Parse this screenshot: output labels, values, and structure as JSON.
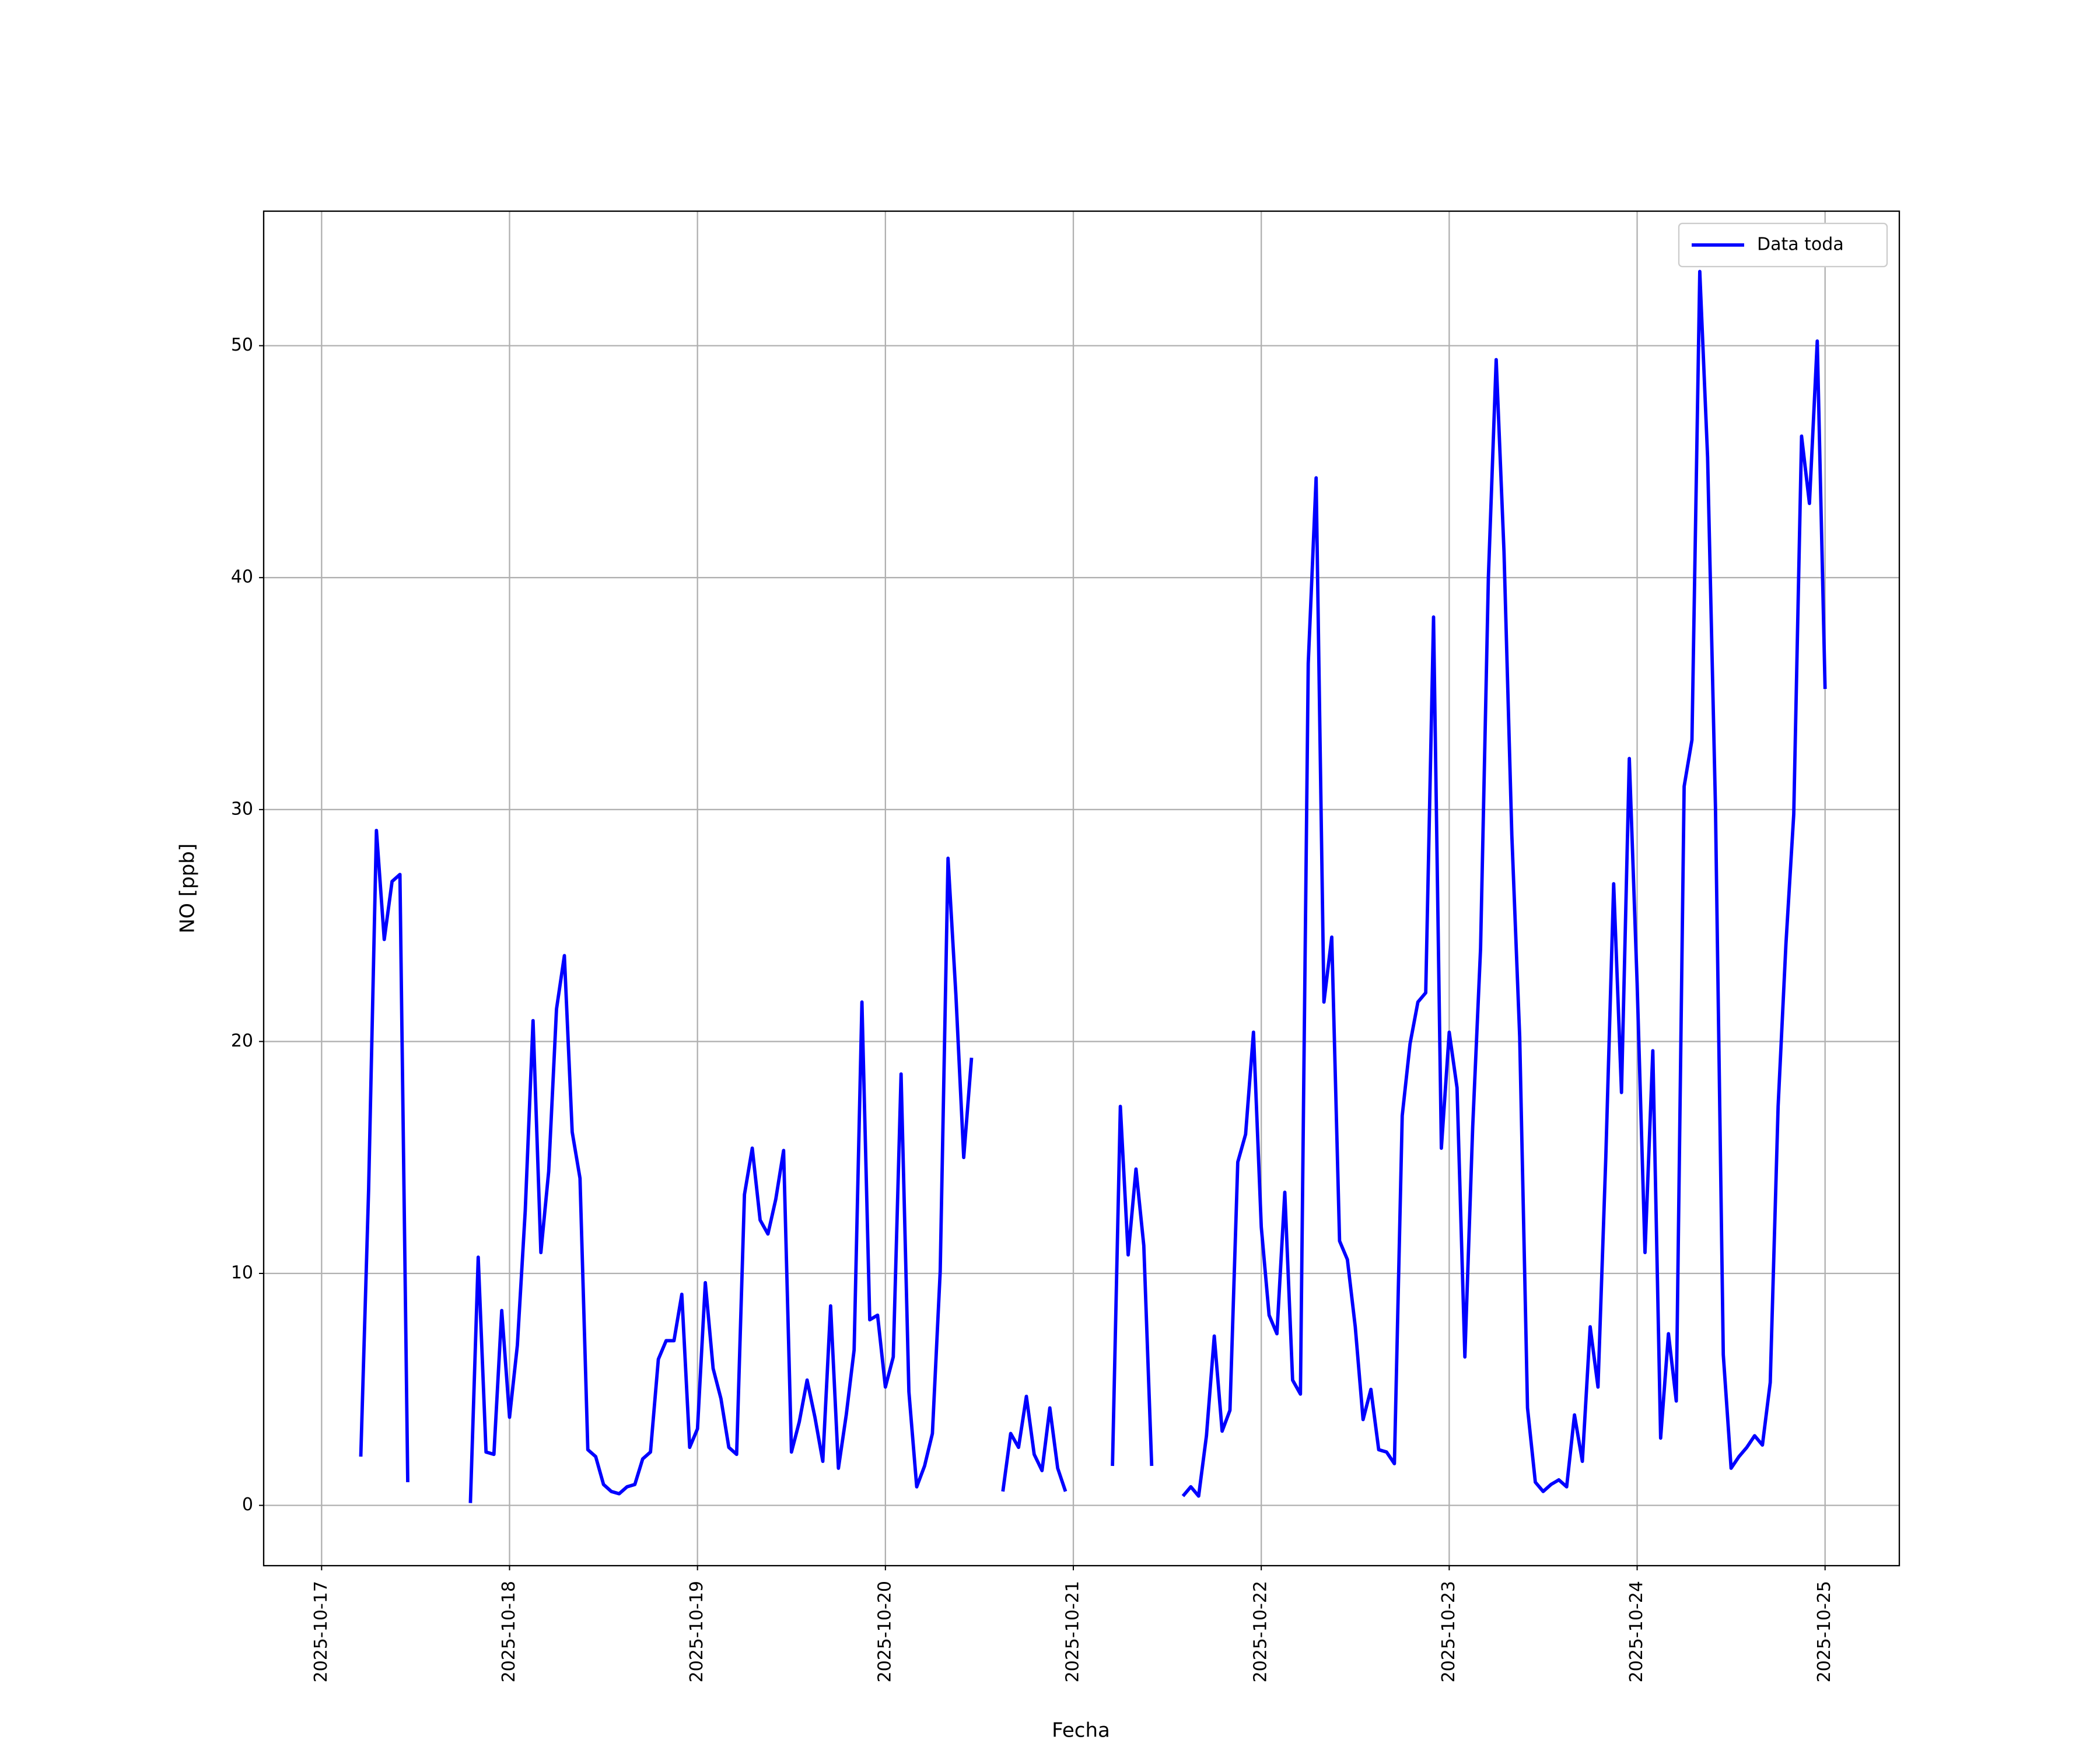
{
  "chart_data": {
    "type": "line",
    "x_label": "Fecha",
    "y_label": "NO [ppb]",
    "x": [
      "2025-10-17 05:00",
      "2025-10-17 06:00",
      "2025-10-17 07:00",
      "2025-10-17 08:00",
      "2025-10-17 09:00",
      "2025-10-17 10:00",
      "2025-10-17 11:00",
      "2025-10-17 12:00",
      "2025-10-17 13:00",
      "2025-10-17 14:00",
      "2025-10-17 15:00",
      "2025-10-17 16:00",
      "2025-10-17 17:00",
      "2025-10-17 18:00",
      "2025-10-17 19:00",
      "2025-10-17 20:00",
      "2025-10-17 21:00",
      "2025-10-17 22:00",
      "2025-10-17 23:00",
      "2025-10-18 00:00",
      "2025-10-18 01:00",
      "2025-10-18 02:00",
      "2025-10-18 03:00",
      "2025-10-18 04:00",
      "2025-10-18 05:00",
      "2025-10-18 06:00",
      "2025-10-18 07:00",
      "2025-10-18 08:00",
      "2025-10-18 09:00",
      "2025-10-18 10:00",
      "2025-10-18 11:00",
      "2025-10-18 12:00",
      "2025-10-18 13:00",
      "2025-10-18 14:00",
      "2025-10-18 15:00",
      "2025-10-18 16:00",
      "2025-10-18 17:00",
      "2025-10-18 18:00",
      "2025-10-18 19:00",
      "2025-10-18 20:00",
      "2025-10-18 21:00",
      "2025-10-18 22:00",
      "2025-10-18 23:00",
      "2025-10-19 00:00",
      "2025-10-19 01:00",
      "2025-10-19 02:00",
      "2025-10-19 03:00",
      "2025-10-19 04:00",
      "2025-10-19 05:00",
      "2025-10-19 06:00",
      "2025-10-19 07:00",
      "2025-10-19 08:00",
      "2025-10-19 09:00",
      "2025-10-19 10:00",
      "2025-10-19 11:00",
      "2025-10-19 12:00",
      "2025-10-19 13:00",
      "2025-10-19 14:00",
      "2025-10-19 15:00",
      "2025-10-19 16:00",
      "2025-10-19 17:00",
      "2025-10-19 18:00",
      "2025-10-19 19:00",
      "2025-10-19 20:00",
      "2025-10-19 21:00",
      "2025-10-19 22:00",
      "2025-10-19 23:00",
      "2025-10-20 00:00",
      "2025-10-20 01:00",
      "2025-10-20 02:00",
      "2025-10-20 03:00",
      "2025-10-20 04:00",
      "2025-10-20 05:00",
      "2025-10-20 06:00",
      "2025-10-20 07:00",
      "2025-10-20 08:00",
      "2025-10-20 09:00",
      "2025-10-20 10:00",
      "2025-10-20 11:00",
      "2025-10-20 12:00",
      "2025-10-20 13:00",
      "2025-10-20 14:00",
      "2025-10-20 15:00",
      "2025-10-20 16:00",
      "2025-10-20 17:00",
      "2025-10-20 18:00",
      "2025-10-20 19:00",
      "2025-10-20 20:00",
      "2025-10-20 21:00",
      "2025-10-20 22:00",
      "2025-10-20 23:00",
      "2025-10-21 00:00",
      "2025-10-21 01:00",
      "2025-10-21 02:00",
      "2025-10-21 03:00",
      "2025-10-21 04:00",
      "2025-10-21 05:00",
      "2025-10-21 06:00",
      "2025-10-21 07:00",
      "2025-10-21 08:00",
      "2025-10-21 09:00",
      "2025-10-21 10:00",
      "2025-10-21 11:00",
      "2025-10-21 12:00",
      "2025-10-21 13:00",
      "2025-10-21 14:00",
      "2025-10-21 15:00",
      "2025-10-21 16:00",
      "2025-10-21 17:00",
      "2025-10-21 18:00",
      "2025-10-21 19:00",
      "2025-10-21 20:00",
      "2025-10-21 21:00",
      "2025-10-21 22:00",
      "2025-10-21 23:00",
      "2025-10-22 00:00",
      "2025-10-22 01:00",
      "2025-10-22 02:00",
      "2025-10-22 03:00",
      "2025-10-22 04:00",
      "2025-10-22 05:00",
      "2025-10-22 06:00",
      "2025-10-22 07:00",
      "2025-10-22 08:00",
      "2025-10-22 09:00",
      "2025-10-22 10:00",
      "2025-10-22 11:00",
      "2025-10-22 12:00",
      "2025-10-22 13:00",
      "2025-10-22 14:00",
      "2025-10-22 15:00",
      "2025-10-22 16:00",
      "2025-10-22 17:00",
      "2025-10-22 18:00",
      "2025-10-22 19:00",
      "2025-10-22 20:00",
      "2025-10-22 21:00",
      "2025-10-22 22:00",
      "2025-10-22 23:00",
      "2025-10-23 00:00",
      "2025-10-23 01:00",
      "2025-10-23 02:00",
      "2025-10-23 03:00",
      "2025-10-23 04:00",
      "2025-10-23 05:00",
      "2025-10-23 06:00",
      "2025-10-23 07:00",
      "2025-10-23 08:00",
      "2025-10-23 09:00",
      "2025-10-23 10:00",
      "2025-10-23 11:00",
      "2025-10-23 12:00",
      "2025-10-23 13:00",
      "2025-10-23 14:00",
      "2025-10-23 15:00",
      "2025-10-23 16:00",
      "2025-10-23 17:00",
      "2025-10-23 18:00",
      "2025-10-23 19:00",
      "2025-10-23 20:00",
      "2025-10-23 21:00",
      "2025-10-23 22:00",
      "2025-10-23 23:00",
      "2025-10-24 00:00",
      "2025-10-24 01:00",
      "2025-10-24 02:00",
      "2025-10-24 03:00",
      "2025-10-24 04:00",
      "2025-10-24 05:00",
      "2025-10-24 06:00",
      "2025-10-24 07:00",
      "2025-10-24 08:00",
      "2025-10-24 09:00",
      "2025-10-24 10:00",
      "2025-10-24 11:00",
      "2025-10-24 12:00",
      "2025-10-24 13:00",
      "2025-10-24 14:00",
      "2025-10-24 15:00",
      "2025-10-24 16:00",
      "2025-10-24 17:00",
      "2025-10-24 18:00",
      "2025-10-24 19:00",
      "2025-10-24 20:00",
      "2025-10-24 21:00",
      "2025-10-24 22:00",
      "2025-10-24 23:00",
      "2025-10-25 00:00"
    ],
    "series": [
      {
        "name": "Data toda",
        "color": "#0000ff",
        "values": [
          2.1,
          13.6,
          29.1,
          24.4,
          26.9,
          27.2,
          1.0,
          null,
          null,
          null,
          null,
          null,
          null,
          null,
          0.1,
          10.7,
          2.3,
          2.2,
          8.4,
          3.8,
          6.9,
          12.7,
          20.9,
          10.9,
          14.4,
          21.4,
          23.7,
          16.1,
          14.1,
          2.4,
          2.1,
          0.9,
          0.6,
          0.5,
          0.8,
          0.9,
          2.0,
          2.3,
          6.3,
          7.1,
          7.1,
          9.1,
          2.5,
          3.3,
          9.6,
          5.9,
          4.6,
          2.5,
          2.2,
          13.4,
          15.4,
          12.3,
          11.7,
          13.2,
          15.3,
          2.3,
          3.6,
          5.4,
          3.8,
          1.9,
          8.6,
          1.6,
          3.9,
          6.7,
          21.7,
          8.0,
          8.2,
          5.1,
          6.4,
          18.6,
          4.9,
          0.8,
          1.7,
          3.1,
          10.1,
          27.9,
          22.0,
          15.0,
          19.3,
          null,
          null,
          null,
          0.6,
          3.1,
          2.5,
          4.7,
          2.2,
          1.5,
          4.2,
          1.6,
          0.6,
          null,
          null,
          null,
          null,
          null,
          1.7,
          17.2,
          10.8,
          14.5,
          11.2,
          1.7,
          null,
          null,
          null,
          0.4,
          0.8,
          0.4,
          3.0,
          7.3,
          3.2,
          4.1,
          14.8,
          16.0,
          20.4,
          12.0,
          8.2,
          7.4,
          13.5,
          5.4,
          4.8,
          36.3,
          44.3,
          21.7,
          24.5,
          11.4,
          10.6,
          7.7,
          3.7,
          5.0,
          2.4,
          2.3,
          1.8,
          16.8,
          19.9,
          21.7,
          22.1,
          38.3,
          15.4,
          20.4,
          18.0,
          6.4,
          16.3,
          24.0,
          40.0,
          49.4,
          41.1,
          28.9,
          20.2,
          4.2,
          1.0,
          0.6,
          0.9,
          1.1,
          0.8,
          3.9,
          1.9,
          7.7,
          5.1,
          15.0,
          26.8,
          17.8,
          32.2,
          22.5,
          10.9,
          19.6,
          2.9,
          7.4,
          4.5,
          31.0,
          33.0,
          53.2,
          45.2,
          30.1,
          6.5,
          1.6,
          2.1,
          2.5,
          3.0,
          2.6,
          5.3,
          17.2,
          24.2,
          29.8,
          46.1,
          43.2,
          50.2,
          35.2
        ]
      }
    ],
    "xlim": [
      "2025-10-16 16:36",
      "2025-10-25 09:29"
    ],
    "xticks": [
      "2025-10-17",
      "2025-10-18",
      "2025-10-19",
      "2025-10-20",
      "2025-10-21",
      "2025-10-22",
      "2025-10-23",
      "2025-10-24",
      "2025-10-25"
    ],
    "ylim": [
      -2.6,
      55.8
    ],
    "yticks": [
      0,
      10,
      20,
      30,
      40,
      50
    ],
    "grid": true,
    "legend": "upper right"
  }
}
